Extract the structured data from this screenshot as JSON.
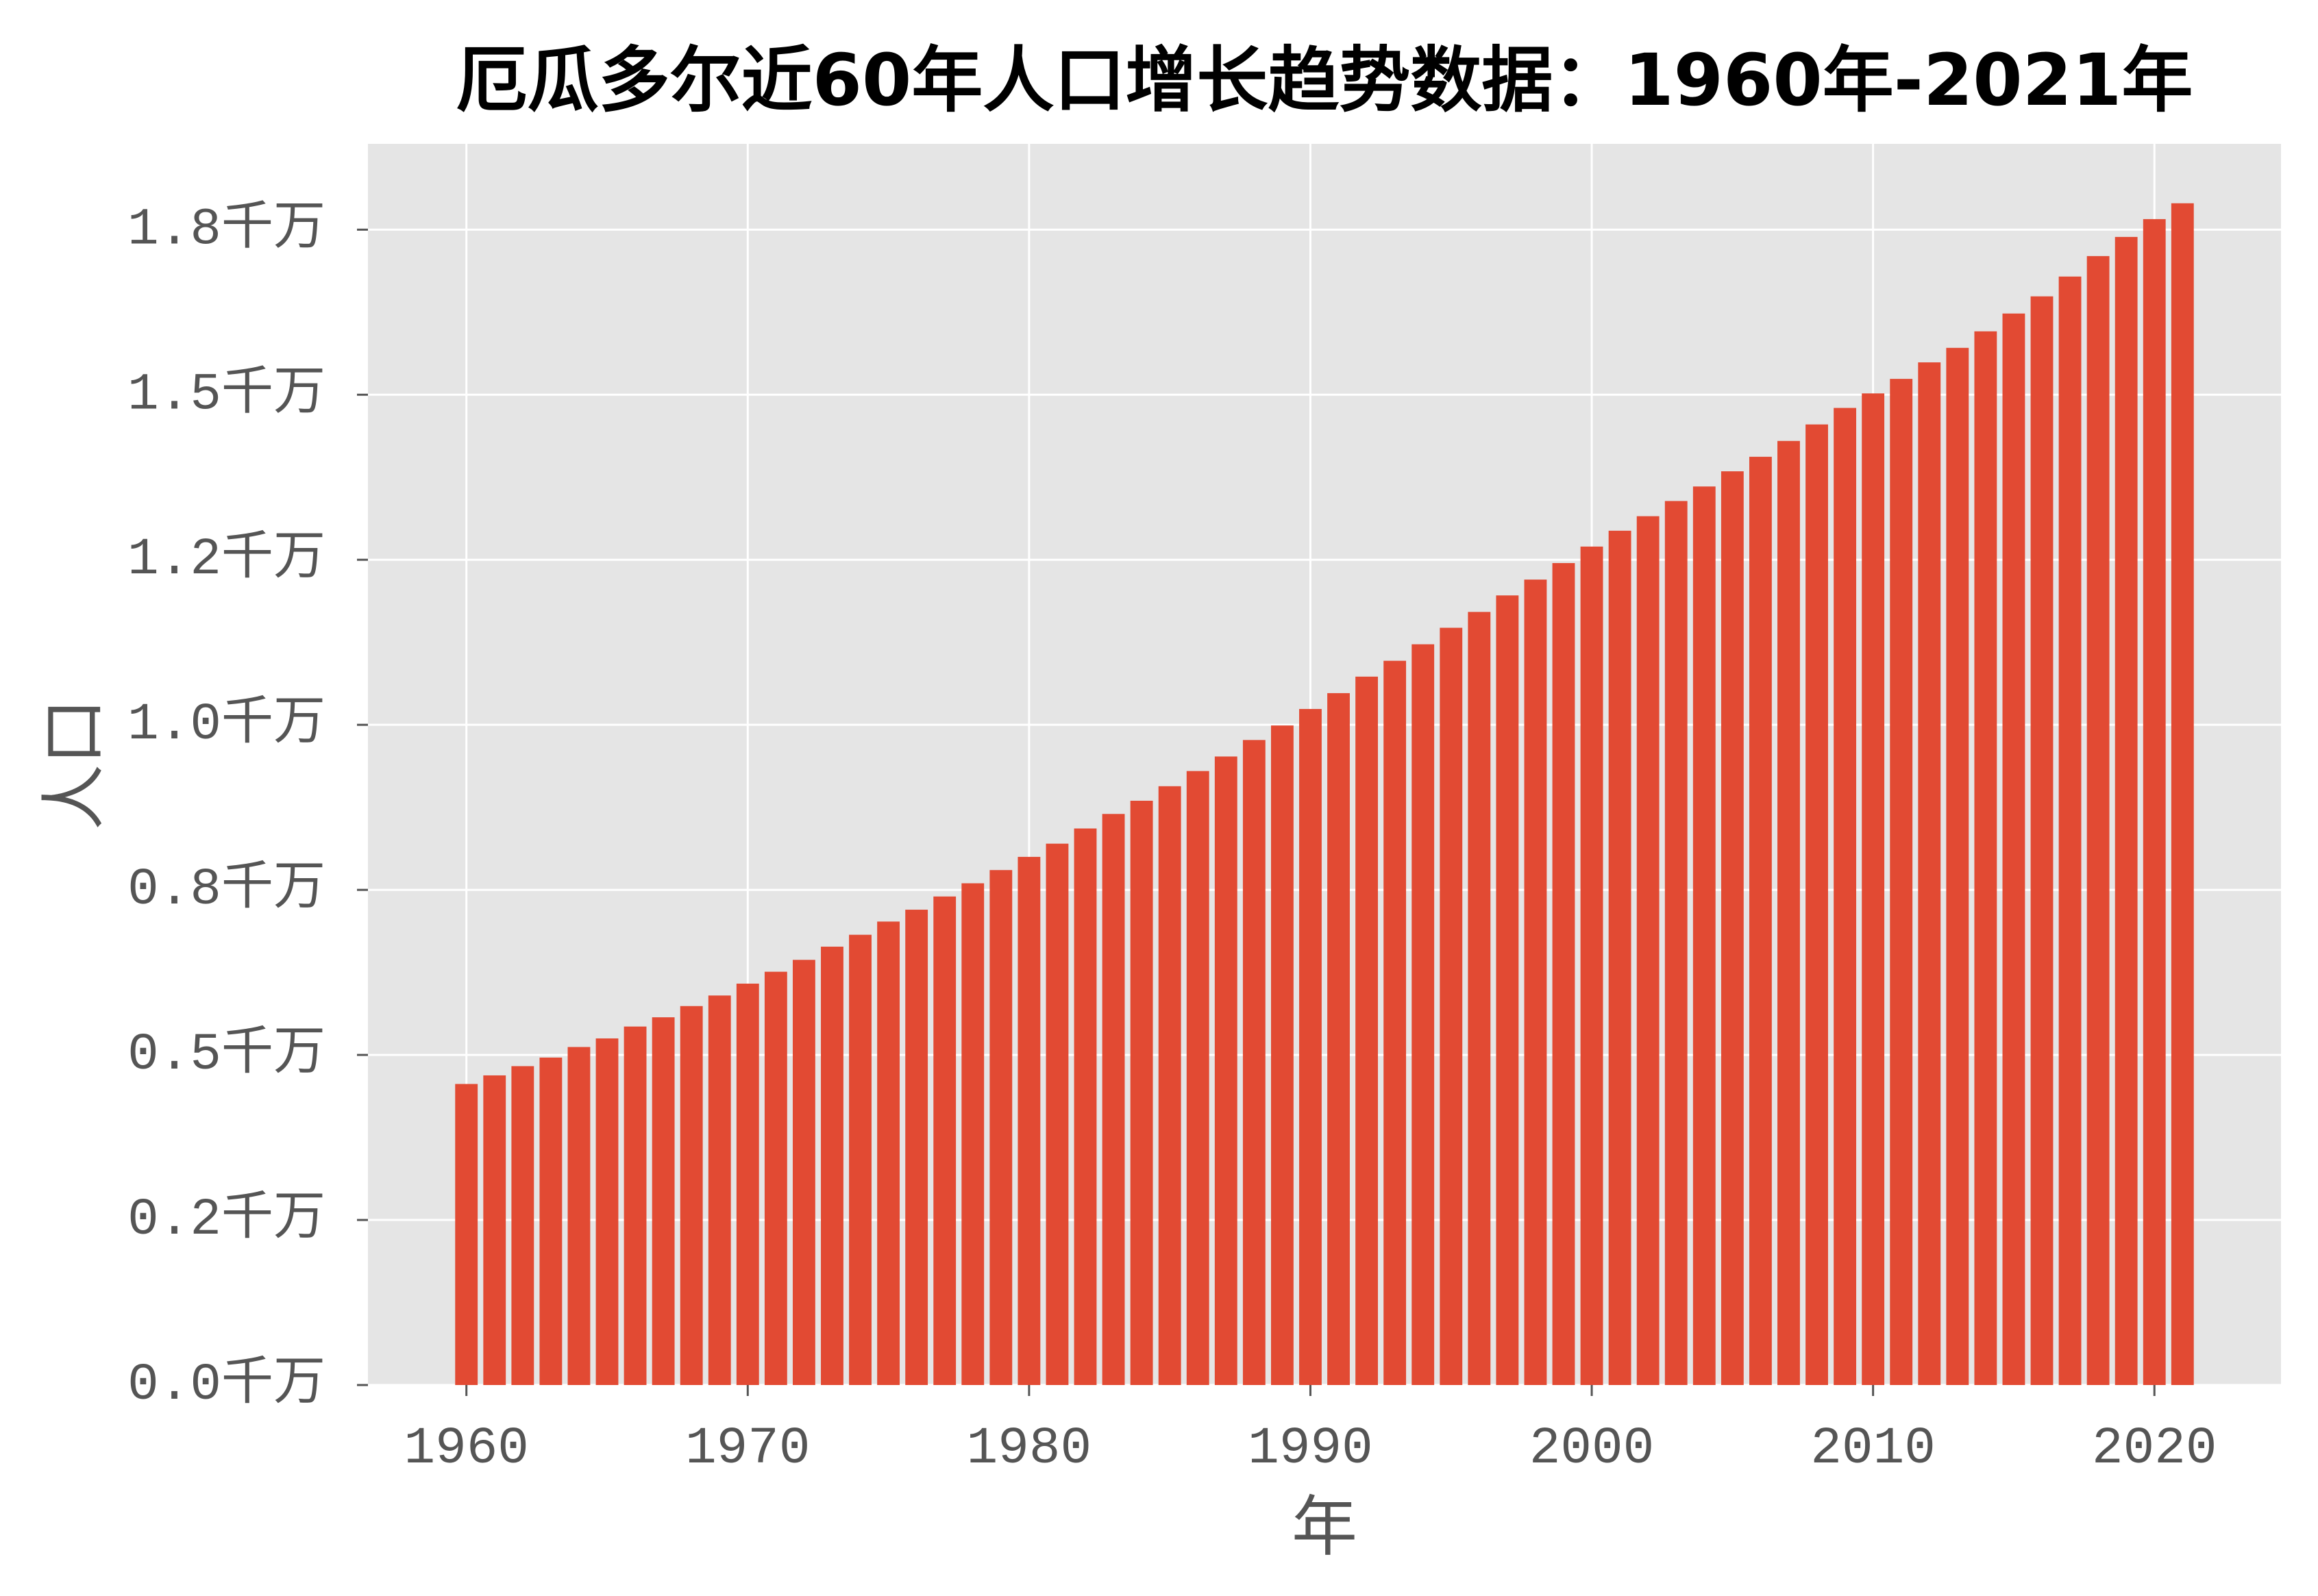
{
  "chart_data": {
    "type": "bar",
    "title": "厄瓜多尔近60年人口增长趋势数据：1960年-2021年",
    "xlabel": "年",
    "ylabel": "人口",
    "x": [
      1960,
      1961,
      1962,
      1963,
      1964,
      1965,
      1966,
      1967,
      1968,
      1969,
      1970,
      1971,
      1972,
      1973,
      1974,
      1975,
      1976,
      1977,
      1978,
      1979,
      1980,
      1981,
      1982,
      1983,
      1984,
      1985,
      1986,
      1987,
      1988,
      1989,
      1990,
      1991,
      1992,
      1993,
      1994,
      1995,
      1996,
      1997,
      1998,
      1999,
      2000,
      2001,
      2002,
      2003,
      2004,
      2005,
      2006,
      2007,
      2008,
      2009,
      2010,
      2011,
      2012,
      2013,
      2014,
      2015,
      2016,
      2017,
      2018,
      2019,
      2020,
      2021
    ],
    "values": [
      0.456,
      0.469,
      0.483,
      0.496,
      0.512,
      0.525,
      0.543,
      0.557,
      0.574,
      0.59,
      0.608,
      0.626,
      0.644,
      0.664,
      0.682,
      0.702,
      0.72,
      0.74,
      0.76,
      0.78,
      0.8,
      0.82,
      0.843,
      0.865,
      0.885,
      0.907,
      0.93,
      0.952,
      0.977,
      0.999,
      1.024,
      1.048,
      1.073,
      1.097,
      1.122,
      1.147,
      1.171,
      1.196,
      1.22,
      1.245,
      1.27,
      1.294,
      1.316,
      1.339,
      1.361,
      1.384,
      1.406,
      1.43,
      1.455,
      1.48,
      1.502,
      1.524,
      1.549,
      1.571,
      1.596,
      1.623,
      1.649,
      1.679,
      1.71,
      1.739,
      1.766,
      1.79
    ],
    "xlim": [
      1956.5,
      2024.5
    ],
    "ylim": [
      0,
      1.88
    ],
    "xticks": {
      "values": [
        1960,
        1970,
        1980,
        1990,
        2000,
        2010,
        2020
      ],
      "labels": [
        "1960",
        "1970",
        "1980",
        "1990",
        "2000",
        "2010",
        "2020"
      ]
    },
    "yticks": {
      "values": [
        0,
        0.25,
        0.5,
        0.75,
        1.0,
        1.25,
        1.5,
        1.75
      ],
      "labels": [
        "0.0千万",
        "0.2千万",
        "0.5千万",
        "0.8千万",
        "1.0千万",
        "1.2千万",
        "1.5千万",
        "1.8千万"
      ]
    },
    "grid": true,
    "colors": {
      "bar": "#E24A33",
      "plot_background": "#E5E5E5",
      "figure_background": "#FFFFFF",
      "grid": "#FFFFFF",
      "axis_text": "#555555",
      "title": "#000000"
    }
  }
}
